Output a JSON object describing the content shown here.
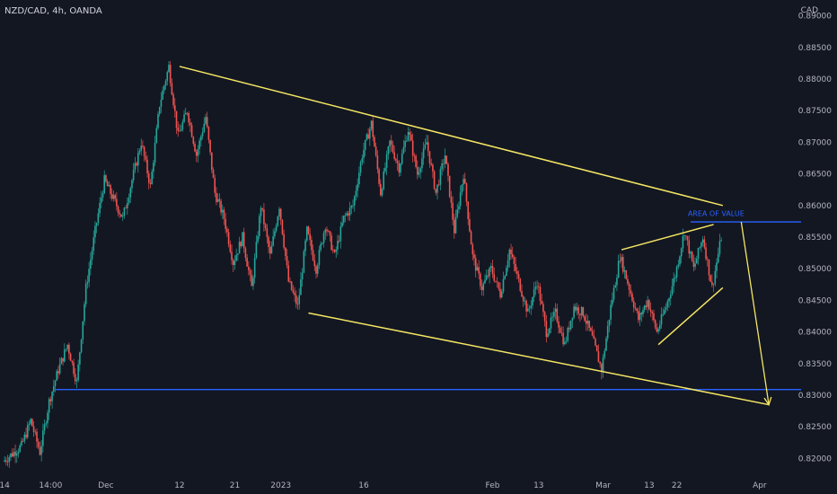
{
  "chart_data": {
    "type": "candlestick",
    "title": "NZD/CAD, 4h, OANDA",
    "currency": "CAD",
    "ylim": [
      0.8175,
      0.8925
    ],
    "y_ticks": [
      "0.89000",
      "0.88500",
      "0.88000",
      "0.87500",
      "0.87000",
      "0.86500",
      "0.86000",
      "0.85500",
      "0.85000",
      "0.84500",
      "0.84000",
      "0.83500",
      "0.83000",
      "0.82500",
      "0.82000"
    ],
    "x_ticks": [
      {
        "label": "14",
        "day": 0
      },
      {
        "label": "14:00",
        "day": 5
      },
      {
        "label": "Dec",
        "day": 11
      },
      {
        "label": "12",
        "day": 19
      },
      {
        "label": "21",
        "day": 25
      },
      {
        "label": "2023",
        "day": 30
      },
      {
        "label": "16",
        "day": 39
      },
      {
        "label": "Feb",
        "day": 53
      },
      {
        "label": "13",
        "day": 58
      },
      {
        "label": "Mar",
        "day": 65
      },
      {
        "label": "13",
        "day": 70
      },
      {
        "label": "22",
        "day": 73
      },
      {
        "label": "Apr",
        "day": 82
      }
    ],
    "price_path": [
      [
        0,
        0.8195
      ],
      [
        2,
        0.822
      ],
      [
        3,
        0.826
      ],
      [
        4,
        0.821
      ],
      [
        5,
        0.829
      ],
      [
        6,
        0.834
      ],
      [
        7,
        0.838
      ],
      [
        8,
        0.832
      ],
      [
        9,
        0.847
      ],
      [
        10,
        0.856
      ],
      [
        11,
        0.864
      ],
      [
        13,
        0.858
      ],
      [
        15,
        0.87
      ],
      [
        16,
        0.863
      ],
      [
        17,
        0.876
      ],
      [
        18,
        0.882
      ],
      [
        19,
        0.871
      ],
      [
        20,
        0.875
      ],
      [
        21,
        0.868
      ],
      [
        22,
        0.874
      ],
      [
        23,
        0.862
      ],
      [
        24,
        0.858
      ],
      [
        25,
        0.851
      ],
      [
        26,
        0.855
      ],
      [
        27,
        0.847
      ],
      [
        28,
        0.86
      ],
      [
        29,
        0.852
      ],
      [
        30,
        0.86
      ],
      [
        31,
        0.848
      ],
      [
        32,
        0.844
      ],
      [
        33,
        0.856
      ],
      [
        34,
        0.85
      ],
      [
        35,
        0.857
      ],
      [
        36,
        0.852
      ],
      [
        37,
        0.858
      ],
      [
        38,
        0.86
      ],
      [
        39,
        0.868
      ],
      [
        40,
        0.873
      ],
      [
        41,
        0.862
      ],
      [
        42,
        0.87
      ],
      [
        43,
        0.866
      ],
      [
        44,
        0.872
      ],
      [
        45,
        0.865
      ],
      [
        46,
        0.87
      ],
      [
        47,
        0.862
      ],
      [
        48,
        0.868
      ],
      [
        49,
        0.856
      ],
      [
        50,
        0.865
      ],
      [
        51,
        0.852
      ],
      [
        52,
        0.847
      ],
      [
        53,
        0.85
      ],
      [
        54,
        0.846
      ],
      [
        55,
        0.853
      ],
      [
        56,
        0.848
      ],
      [
        57,
        0.843
      ],
      [
        58,
        0.848
      ],
      [
        59,
        0.84
      ],
      [
        60,
        0.843
      ],
      [
        61,
        0.838
      ],
      [
        62,
        0.844
      ],
      [
        63,
        0.843
      ],
      [
        64,
        0.839
      ],
      [
        65,
        0.834
      ],
      [
        66,
        0.844
      ],
      [
        67,
        0.852
      ],
      [
        68,
        0.847
      ],
      [
        69,
        0.842
      ],
      [
        70,
        0.845
      ],
      [
        71,
        0.84
      ],
      [
        72,
        0.844
      ],
      [
        73,
        0.849
      ],
      [
        74,
        0.856
      ],
      [
        75,
        0.85
      ],
      [
        76,
        0.855
      ],
      [
        77,
        0.847
      ],
      [
        78,
        0.855
      ]
    ],
    "horizontal_lines": [
      0.8574,
      0.8309
    ],
    "trend_lines": [
      {
        "from": [
          19,
          0.882
        ],
        "to": [
          78,
          0.86
        ]
      },
      {
        "from": [
          33,
          0.843
        ],
        "to": [
          83,
          0.8285
        ]
      },
      {
        "from": [
          67,
          0.853
        ],
        "to": [
          77,
          0.857
        ]
      },
      {
        "from": [
          71,
          0.838
        ],
        "to": [
          78,
          0.847
        ]
      }
    ],
    "projection": {
      "from": [
        80,
        0.8574
      ],
      "to": [
        83,
        0.8285
      ]
    },
    "annotation": {
      "text": "AREA OF VALUE",
      "day": 74,
      "price": 0.8578
    },
    "colors": {
      "background": "#131722",
      "up": "#26a69a",
      "down": "#ef5350",
      "trend": "#f5e663",
      "level": "#2962ff",
      "text": "#b2b5be"
    }
  }
}
